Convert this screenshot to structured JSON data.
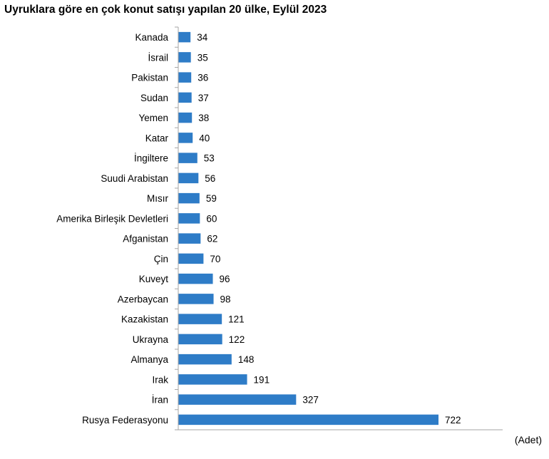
{
  "chart_data": {
    "type": "bar",
    "orientation": "horizontal",
    "title": "Uyruklara göre en çok konut satışı yapılan 20 ülke, Eylül 2023",
    "unit": "(Adet)",
    "categories": [
      "Kanada",
      "İsrail",
      "Pakistan",
      "Sudan",
      "Yemen",
      "Katar",
      "İngiltere",
      "Suudi Arabistan",
      "Mısır",
      "Amerika Birleşik Devletleri",
      "Afganistan",
      "Çin",
      "Kuveyt",
      "Azerbaycan",
      "Kazakistan",
      "Ukrayna",
      "Almanya",
      "Irak",
      "İran",
      "Rusya Federasyonu"
    ],
    "values": [
      34,
      35,
      36,
      37,
      38,
      40,
      53,
      56,
      59,
      60,
      62,
      70,
      96,
      98,
      121,
      122,
      148,
      191,
      327,
      722
    ],
    "xlim": [
      0,
      900
    ],
    "grid": false,
    "legend": "none",
    "bar_color": "#2E7CC7",
    "axis_color": "#A6A6A6"
  }
}
